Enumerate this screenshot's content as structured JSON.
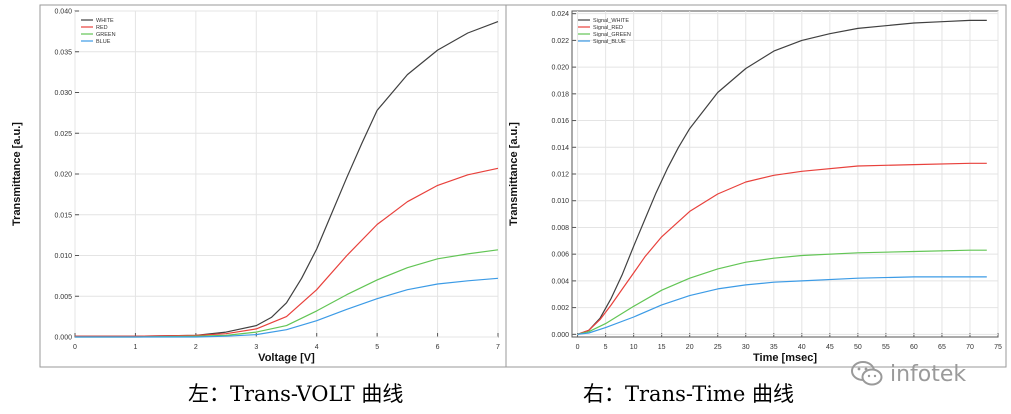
{
  "captions": {
    "left": "左：Trans-VOLT 曲线",
    "right": "右：Trans-Time 曲线"
  },
  "watermark": {
    "text": "infotek",
    "icon": "wechat-icon"
  },
  "chart_data": [
    {
      "type": "line",
      "title": "",
      "xlabel": "Voltage [V]",
      "ylabel": "Transmittance [a.u.]",
      "xlim": [
        0,
        7
      ],
      "ylim": [
        0,
        0.04
      ],
      "xticks": [
        "0",
        "1",
        "2",
        "3",
        "4",
        "5",
        "6",
        "7"
      ],
      "yticks": [
        "0.000",
        "0.005",
        "0.010",
        "0.015",
        "0.020",
        "0.025",
        "0.030",
        "0.035",
        "0.040"
      ],
      "grid": true,
      "legend_position": "top-left",
      "series": [
        {
          "name": "WHITE",
          "color": "#404040",
          "x": [
            0,
            1,
            2,
            2.5,
            3,
            3.25,
            3.5,
            3.75,
            4,
            4.25,
            4.5,
            4.75,
            5,
            5.5,
            6,
            6.5,
            7
          ],
          "y": [
            0.0001,
            0.0001,
            0.0002,
            0.0006,
            0.0014,
            0.0024,
            0.0042,
            0.0072,
            0.0108,
            0.0152,
            0.0196,
            0.0238,
            0.0278,
            0.0322,
            0.0352,
            0.0373,
            0.0387
          ]
        },
        {
          "name": "RED",
          "color": "#e8413c",
          "x": [
            0,
            1,
            2,
            2.5,
            3,
            3.5,
            4,
            4.5,
            5,
            5.5,
            6,
            6.5,
            7
          ],
          "y": [
            0.0001,
            0.0001,
            0.0002,
            0.0004,
            0.001,
            0.0025,
            0.0058,
            0.01,
            0.0138,
            0.0166,
            0.0186,
            0.0199,
            0.0207
          ]
        },
        {
          "name": "GREEN",
          "color": "#62c555",
          "x": [
            0,
            1,
            2,
            2.5,
            3,
            3.5,
            4,
            4.5,
            5,
            5.5,
            6,
            6.5,
            7
          ],
          "y": [
            0.0,
            0.0,
            0.0001,
            0.0002,
            0.0006,
            0.0014,
            0.0032,
            0.0052,
            0.007,
            0.0085,
            0.0096,
            0.0102,
            0.0107
          ]
        },
        {
          "name": "BLUE",
          "color": "#3c9be6",
          "x": [
            0,
            1,
            2,
            2.5,
            3,
            3.5,
            4,
            4.5,
            5,
            5.5,
            6,
            6.5,
            7
          ],
          "y": [
            0.0,
            0.0,
            0.0,
            0.0001,
            0.0003,
            0.0009,
            0.002,
            0.0034,
            0.0047,
            0.0058,
            0.0065,
            0.0069,
            0.0072
          ]
        }
      ]
    },
    {
      "type": "line",
      "title": "",
      "xlabel": "Time [msec]",
      "ylabel": "Transmittance [a.u.]",
      "xlim": [
        -1,
        75
      ],
      "ylim": [
        -0.0002,
        0.0242
      ],
      "xticks": [
        "0",
        "5",
        "10",
        "15",
        "20",
        "25",
        "30",
        "35",
        "40",
        "45",
        "50",
        "55",
        "60",
        "65",
        "70",
        "75"
      ],
      "yticks": [
        "0.000",
        "0.002",
        "0.004",
        "0.006",
        "0.008",
        "0.010",
        "0.012",
        "0.014",
        "0.016",
        "0.018",
        "0.020",
        "0.022",
        "0.024"
      ],
      "grid": true,
      "legend_position": "top-left",
      "series": [
        {
          "name": "Signal_WHITE",
          "color": "#404040",
          "x": [
            0,
            2,
            4,
            6,
            8,
            10,
            12,
            14,
            16,
            18,
            20,
            25,
            30,
            35,
            40,
            45,
            50,
            55,
            60,
            65,
            70,
            73
          ],
          "y": [
            0.0,
            0.0003,
            0.0012,
            0.0027,
            0.0045,
            0.0066,
            0.0086,
            0.0106,
            0.0124,
            0.014,
            0.0154,
            0.0181,
            0.0199,
            0.0212,
            0.022,
            0.0225,
            0.0229,
            0.0231,
            0.0233,
            0.0234,
            0.0235,
            0.0235
          ]
        },
        {
          "name": "Signal_RED",
          "color": "#e8413c",
          "x": [
            0,
            2,
            4,
            6,
            8,
            10,
            12,
            15,
            20,
            25,
            30,
            35,
            40,
            50,
            60,
            70,
            73
          ],
          "y": [
            0.0,
            0.0003,
            0.0011,
            0.0022,
            0.0034,
            0.0046,
            0.0058,
            0.0073,
            0.0092,
            0.0105,
            0.0114,
            0.0119,
            0.0122,
            0.0126,
            0.0127,
            0.0128,
            0.0128
          ]
        },
        {
          "name": "Signal_GREEN",
          "color": "#62c555",
          "x": [
            0,
            2,
            5,
            10,
            15,
            20,
            25,
            30,
            35,
            40,
            50,
            60,
            70,
            73
          ],
          "y": [
            0.0,
            0.0002,
            0.0008,
            0.0021,
            0.0033,
            0.0042,
            0.0049,
            0.0054,
            0.0057,
            0.0059,
            0.0061,
            0.0062,
            0.0063,
            0.0063
          ]
        },
        {
          "name": "Signal_BLUE",
          "color": "#3c9be6",
          "x": [
            0,
            2,
            5,
            10,
            15,
            20,
            25,
            30,
            35,
            40,
            50,
            60,
            70,
            73
          ],
          "y": [
            0.0,
            0.0001,
            0.0005,
            0.0013,
            0.0022,
            0.0029,
            0.0034,
            0.0037,
            0.0039,
            0.004,
            0.0042,
            0.0043,
            0.0043,
            0.0043
          ]
        }
      ]
    }
  ]
}
